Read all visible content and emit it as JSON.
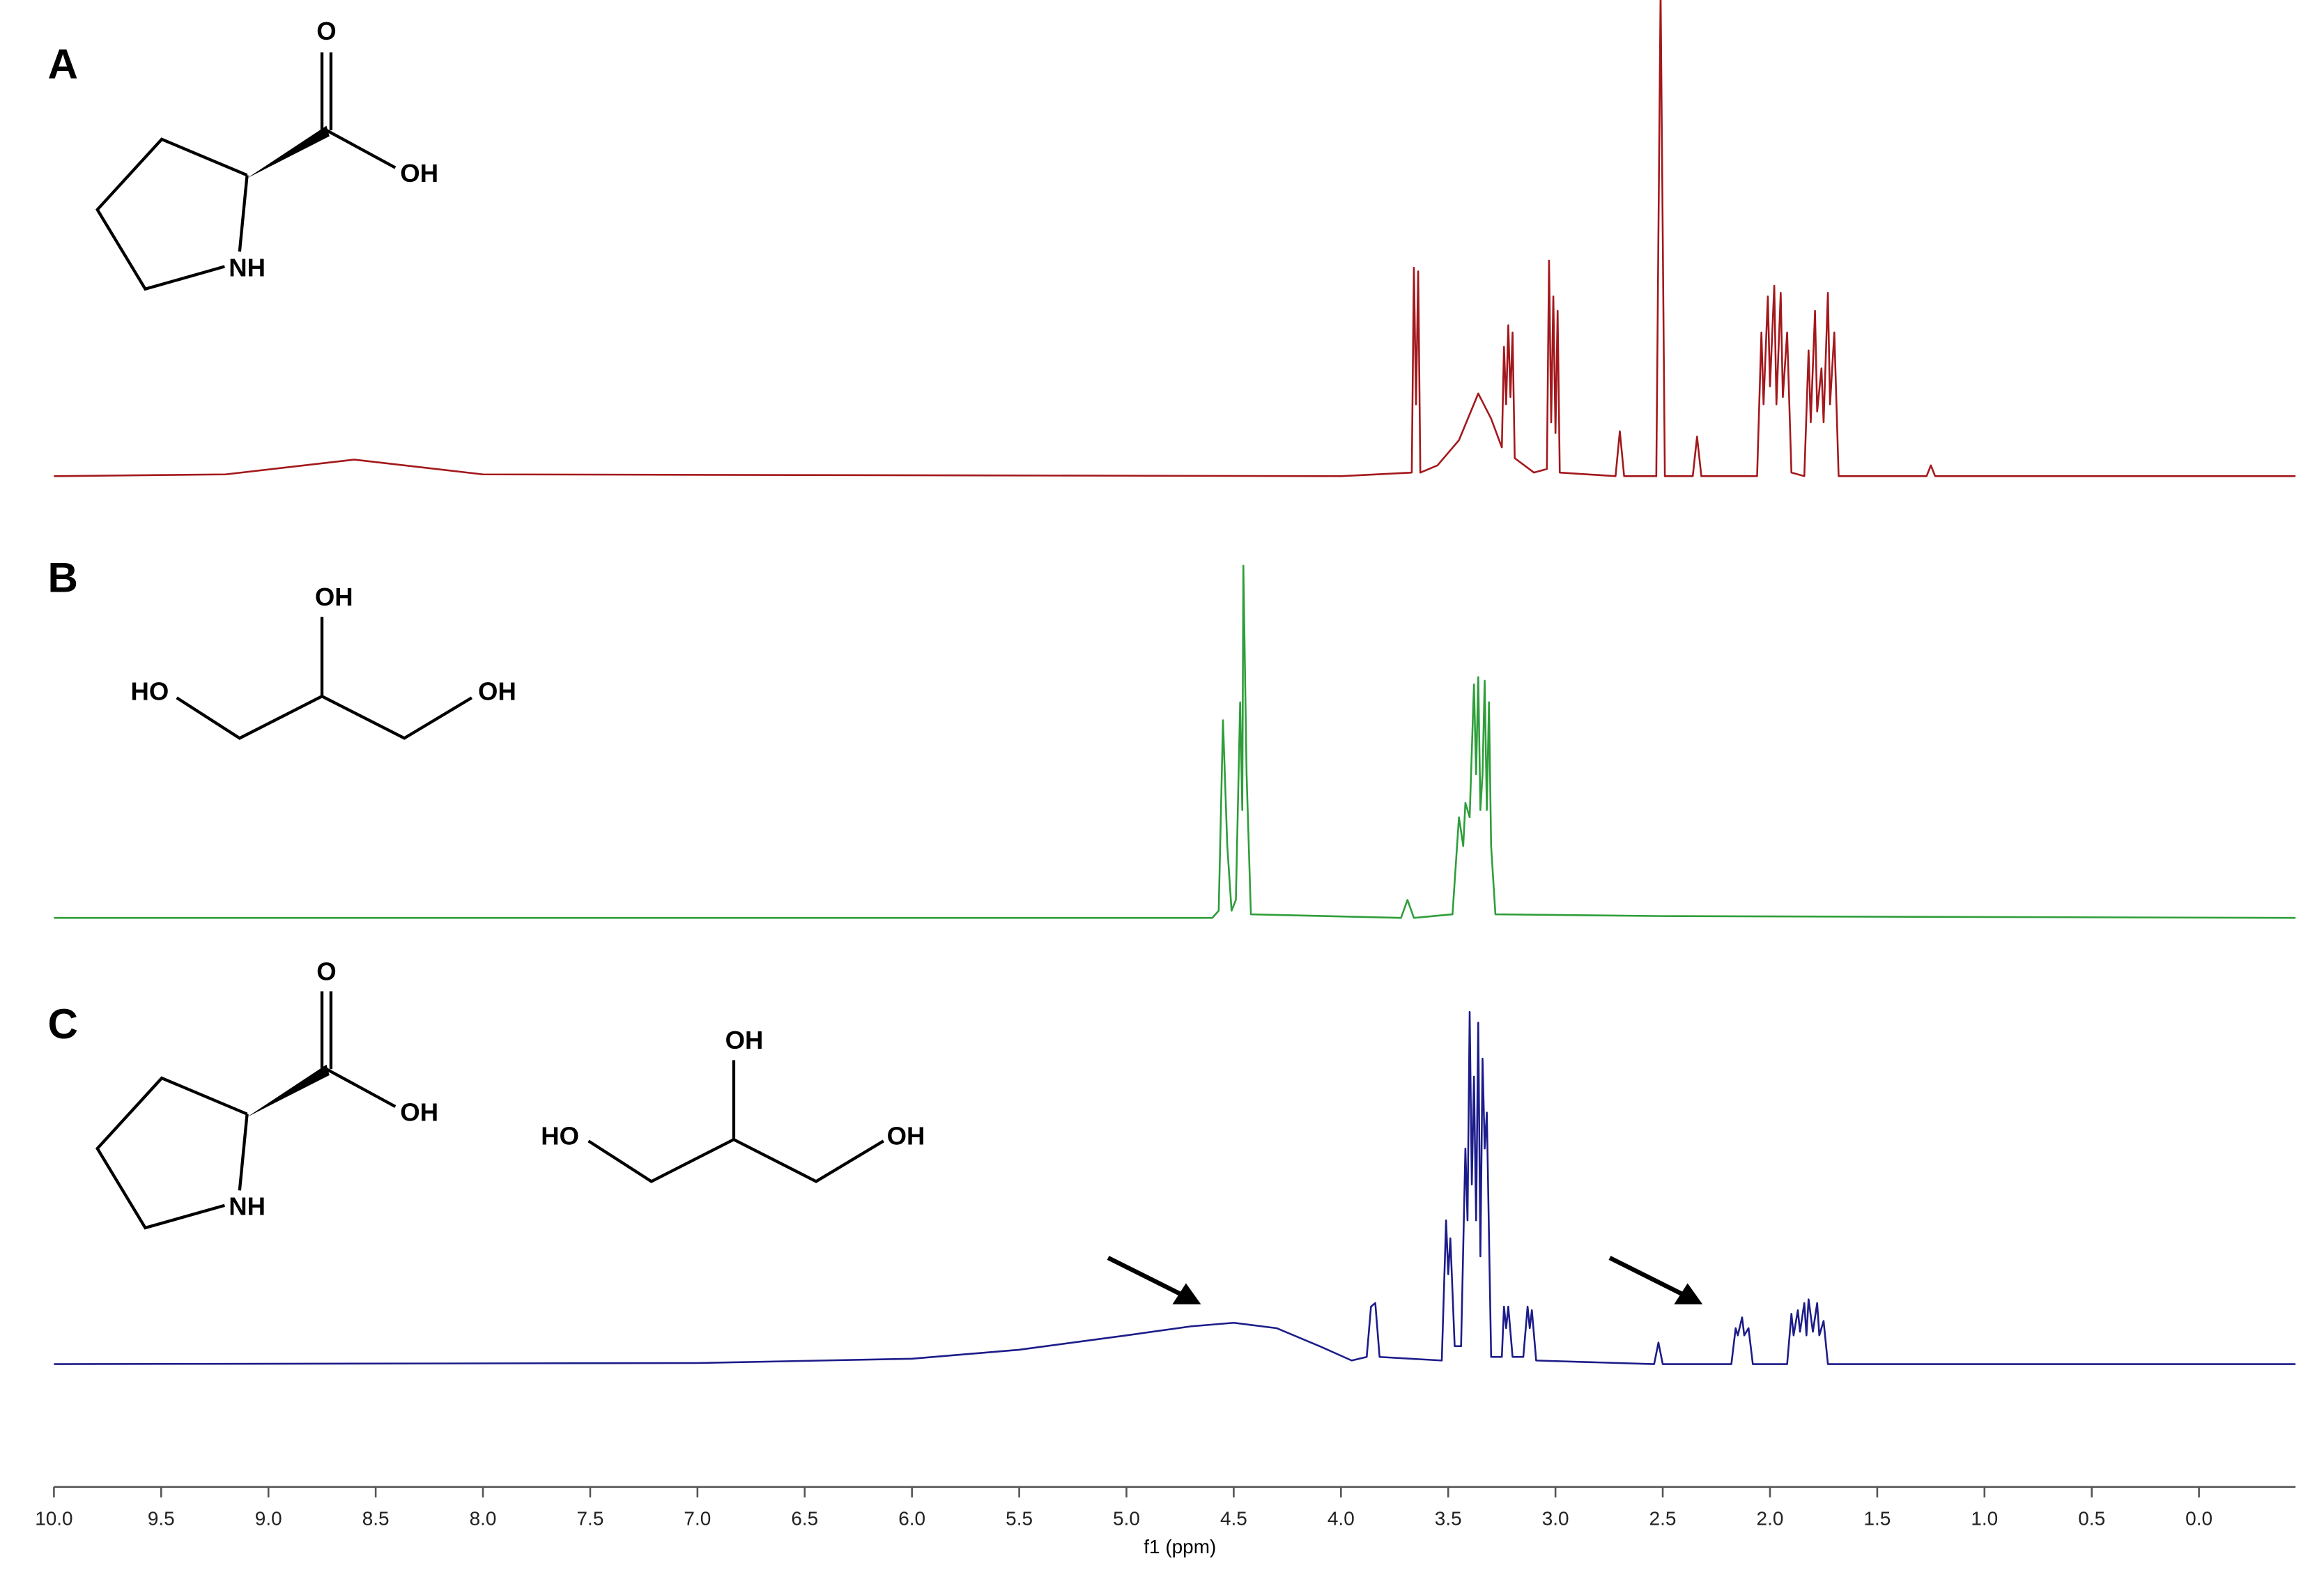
{
  "chart_data": {
    "type": "line",
    "xlabel": "f1 (ppm)",
    "xlim": [
      10,
      -0.45
    ],
    "xticks": [
      {
        "value": 10,
        "label": "10.0"
      },
      9.5,
      {
        "value": 9,
        "label": "9.0"
      },
      8.5,
      {
        "value": 8,
        "label": "8.0"
      },
      7.5,
      {
        "value": 7,
        "label": "7.0"
      },
      6.5,
      {
        "value": 6,
        "label": "6.0"
      },
      5.5,
      {
        "value": 5,
        "label": "5.0"
      },
      4.5,
      {
        "value": 4,
        "label": "4.0"
      },
      3.5,
      {
        "value": 3,
        "label": "3.0"
      },
      2.5,
      {
        "value": 2,
        "label": "2.0"
      },
      1.5,
      {
        "value": 1,
        "label": "1.0"
      },
      0.5,
      {
        "value": 0,
        "label": "0.0"
      }
    ],
    "ylim": [
      0,
      100
    ],
    "series": [
      {
        "label": "A",
        "color": "#a3181c",
        "atoms": [
          "O",
          "OH",
          "NH"
        ],
        "x": [
          10.0,
          9.2,
          8.6,
          8.0,
          4.0,
          3.67,
          3.66,
          3.65,
          3.64,
          3.63,
          3.55,
          3.45,
          3.36,
          3.3,
          3.25,
          3.24,
          3.23,
          3.22,
          3.21,
          3.2,
          3.19,
          3.1,
          3.04,
          3.03,
          3.02,
          3.01,
          3.0,
          2.99,
          2.98,
          2.72,
          2.7,
          2.68,
          2.53,
          2.51,
          2.49,
          2.36,
          2.34,
          2.32,
          2.06,
          2.04,
          2.03,
          2.01,
          2.0,
          1.98,
          1.97,
          1.95,
          1.94,
          1.92,
          1.9,
          1.84,
          1.82,
          1.81,
          1.79,
          1.78,
          1.76,
          1.75,
          1.73,
          1.72,
          1.7,
          1.68,
          1.27,
          1.25,
          1.23,
          -0.45
        ],
        "values": [
          0,
          0.5,
          4.6,
          0.5,
          0,
          1,
          58,
          20,
          57,
          1,
          3,
          10,
          23,
          16,
          8,
          36,
          20,
          42,
          22,
          40,
          5,
          1,
          2,
          60,
          15,
          50,
          12,
          46,
          1,
          0,
          12.5,
          0,
          0,
          135,
          0,
          0,
          11,
          0,
          0,
          40,
          20,
          50,
          25,
          53,
          20,
          51,
          22,
          40,
          1,
          0,
          35,
          15,
          46,
          18,
          30,
          15,
          51,
          20,
          40,
          0,
          0,
          3,
          0,
          0
        ]
      },
      {
        "label": "B",
        "color": "#2e9e3a",
        "atoms": [
          "OH",
          "HO",
          "OH"
        ],
        "x": [
          10.0,
          4.6,
          4.57,
          4.55,
          4.53,
          4.51,
          4.49,
          4.47,
          4.46,
          4.455,
          4.44,
          4.42,
          3.72,
          3.69,
          3.66,
          3.48,
          3.45,
          3.43,
          3.42,
          3.4,
          3.38,
          3.37,
          3.36,
          3.35,
          3.34,
          3.33,
          3.32,
          3.31,
          3.3,
          3.28,
          2.5,
          -0.45
        ],
        "values": [
          0,
          0,
          2,
          55,
          20,
          2,
          5,
          60,
          30,
          98,
          40,
          1,
          0,
          5,
          0,
          1,
          28,
          20,
          32,
          28,
          65,
          40,
          67,
          30,
          40,
          66,
          30,
          60,
          20,
          1,
          0.5,
          0
        ]
      },
      {
        "label": "C",
        "color": "#1c1c8a",
        "atoms": [
          "O",
          "OH",
          "NH",
          "OH",
          "HO",
          "OH"
        ],
        "x": [
          10.0,
          7.0,
          6.0,
          5.5,
          5.0,
          4.7,
          4.5,
          4.3,
          4.1,
          3.95,
          3.88,
          3.86,
          3.84,
          3.82,
          3.53,
          3.51,
          3.5,
          3.49,
          3.47,
          3.44,
          3.42,
          3.41,
          3.4,
          3.39,
          3.38,
          3.37,
          3.36,
          3.35,
          3.34,
          3.33,
          3.32,
          3.3,
          3.25,
          3.24,
          3.23,
          3.22,
          3.2,
          3.15,
          3.13,
          3.12,
          3.11,
          3.09,
          2.54,
          2.52,
          2.5,
          2.18,
          2.16,
          2.15,
          2.13,
          2.12,
          2.1,
          2.08,
          1.92,
          1.9,
          1.89,
          1.87,
          1.86,
          1.84,
          1.83,
          1.82,
          1.8,
          1.78,
          1.77,
          1.75,
          1.73,
          -0.45
        ],
        "values": [
          0,
          0.3,
          1.5,
          4,
          8,
          10.5,
          11.5,
          10,
          5,
          1,
          2,
          16,
          17,
          2,
          1,
          40,
          25,
          35,
          5,
          5,
          60,
          40,
          98,
          50,
          80,
          40,
          95,
          30,
          85,
          60,
          70,
          2,
          2,
          16,
          10,
          16,
          2,
          2,
          16,
          10,
          15,
          1,
          0,
          6,
          0,
          0,
          10,
          8,
          13,
          8,
          10,
          0,
          0,
          14,
          8,
          15,
          9,
          17,
          8,
          18,
          9,
          17,
          8,
          12,
          0,
          0
        ]
      }
    ]
  }
}
